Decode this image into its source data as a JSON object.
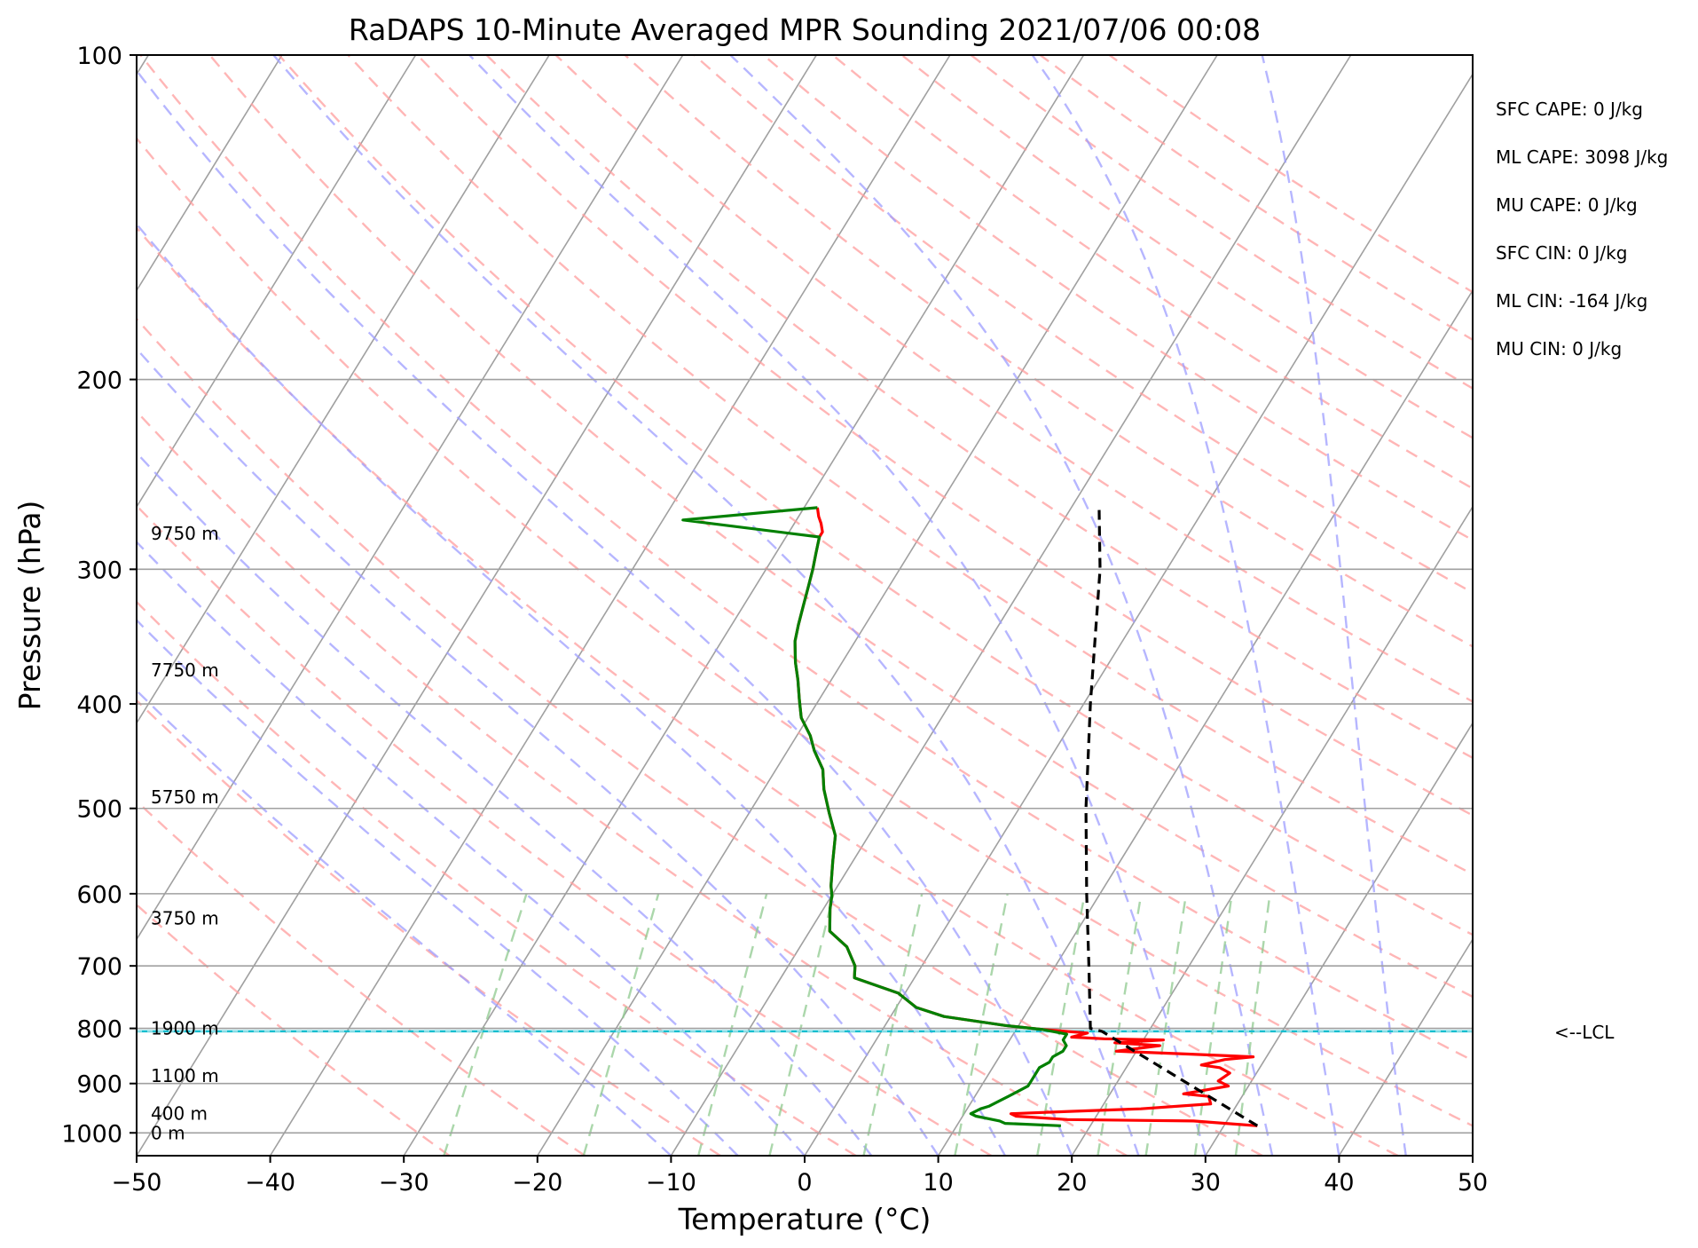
{
  "chart_data": {
    "type": "line",
    "subtype": "skew-T log-P diagram",
    "title": "RaDAPS 10-Minute Averaged MPR Sounding 2021/07/06 00:08",
    "xlabel": "Temperature (°C)",
    "ylabel": "Pressure (hPa)",
    "xlim": [
      -50,
      50
    ],
    "ylim": [
      1050,
      100
    ],
    "y_scale": "log",
    "x_ticks": [
      -50,
      -40,
      -30,
      -20,
      -10,
      0,
      10,
      20,
      30,
      40,
      50
    ],
    "x_tick_labels": [
      "−50",
      "−40",
      "−30",
      "−20",
      "−10",
      "0",
      "10",
      "20",
      "30",
      "40",
      "50"
    ],
    "y_ticks": [
      100,
      200,
      300,
      400,
      500,
      600,
      700,
      800,
      900,
      1000
    ],
    "y_tick_labels": [
      "100",
      "200",
      "300",
      "400",
      "500",
      "600",
      "700",
      "800",
      "900",
      "1000"
    ],
    "grid": true,
    "series": [
      {
        "role": "temperature",
        "color": "#ff0000",
        "points": [
          [
            32.5,
            985
          ],
          [
            27.5,
            975
          ],
          [
            18,
            972
          ],
          [
            14,
            965
          ],
          [
            13.5,
            960
          ],
          [
            18,
            955
          ],
          [
            23,
            950
          ],
          [
            28,
            940
          ],
          [
            27.5,
            925
          ],
          [
            25.5,
            920
          ],
          [
            28.5,
            905
          ],
          [
            27.5,
            895
          ],
          [
            28,
            880
          ],
          [
            27,
            870
          ],
          [
            25.5,
            865
          ],
          [
            27,
            855
          ],
          [
            29,
            850
          ],
          [
            24,
            845
          ],
          [
            18.5,
            840
          ],
          [
            21.5,
            830
          ],
          [
            18,
            825
          ],
          [
            21.5,
            820
          ],
          [
            17,
            818
          ],
          [
            14.5,
            815
          ],
          [
            15.5,
            808
          ],
          [
            12,
            802
          ],
          [
            9,
            795
          ],
          [
            4,
            780
          ],
          [
            1.5,
            765
          ],
          [
            -0.5,
            742
          ],
          [
            -4.5,
            718
          ],
          [
            -5,
            700
          ],
          [
            -6.5,
            672
          ],
          [
            -8.5,
            650
          ],
          [
            -9.5,
            620
          ],
          [
            -10,
            602
          ],
          [
            -10.5,
            590
          ],
          [
            -11.5,
            560
          ],
          [
            -12.5,
            530
          ],
          [
            -14,
            505
          ],
          [
            -15.5,
            480
          ],
          [
            -16.5,
            460
          ],
          [
            -18,
            442
          ],
          [
            -19,
            428
          ],
          [
            -20.5,
            412
          ],
          [
            -21.5,
            396
          ],
          [
            -22.5,
            380
          ],
          [
            -23.5,
            366
          ],
          [
            -24.5,
            350
          ],
          [
            -25,
            338
          ],
          [
            -25.5,
            325
          ],
          [
            -26,
            312
          ],
          [
            -26.5,
            300
          ],
          [
            -27,
            290
          ],
          [
            -27.5,
            280
          ],
          [
            -27.5,
            277
          ],
          [
            -28,
            272
          ],
          [
            -28.5,
            268
          ],
          [
            -29,
            263
          ]
        ]
      },
      {
        "role": "dewpoint",
        "color": "#008000",
        "points": [
          [
            17.8,
            985
          ],
          [
            13.5,
            980
          ],
          [
            13,
            975
          ],
          [
            12,
            970
          ],
          [
            11,
            965
          ],
          [
            10.5,
            960
          ],
          [
            11,
            950
          ],
          [
            11.5,
            945
          ],
          [
            12,
            935
          ],
          [
            12.5,
            925
          ],
          [
            13,
            915
          ],
          [
            13.5,
            905
          ],
          [
            13.5,
            895
          ],
          [
            13.5,
            880
          ],
          [
            13.5,
            870
          ],
          [
            14,
            860
          ],
          [
            14,
            850
          ],
          [
            14.5,
            840
          ],
          [
            14.5,
            830
          ],
          [
            14,
            820
          ],
          [
            14,
            810
          ],
          [
            12,
            802
          ],
          [
            9,
            795
          ],
          [
            4,
            780
          ],
          [
            1.5,
            765
          ],
          [
            -0.5,
            742
          ],
          [
            -4.5,
            718
          ],
          [
            -5,
            700
          ],
          [
            -6.5,
            672
          ],
          [
            -8.5,
            650
          ],
          [
            -9.5,
            620
          ],
          [
            -10,
            602
          ],
          [
            -10.5,
            590
          ],
          [
            -11.5,
            560
          ],
          [
            -12.5,
            530
          ],
          [
            -14,
            505
          ],
          [
            -15.5,
            480
          ],
          [
            -16.5,
            460
          ],
          [
            -18,
            442
          ],
          [
            -19,
            428
          ],
          [
            -20.5,
            412
          ],
          [
            -21.5,
            396
          ],
          [
            -22.5,
            380
          ],
          [
            -23.5,
            366
          ],
          [
            -24.5,
            350
          ],
          [
            -25,
            338
          ],
          [
            -25.5,
            325
          ],
          [
            -26,
            312
          ],
          [
            -26.5,
            300
          ],
          [
            -27,
            290
          ],
          [
            -27.5,
            280
          ],
          [
            -38.5,
            270
          ],
          [
            -29,
            263
          ]
        ]
      },
      {
        "role": "parcel profile",
        "color": "#000000",
        "points": [
          [
            32.5,
            985
          ],
          [
            16.5,
            805
          ],
          [
            15.5,
            800
          ],
          [
            12.5,
            700
          ],
          [
            9,
            600
          ],
          [
            5,
            500
          ],
          [
            0.5,
            400
          ],
          [
            -5,
            300
          ],
          [
            -8,
            262
          ]
        ]
      }
    ],
    "lcl_hpa": 805,
    "lcl_label": "<--LCL",
    "annotations": [
      "SFC CAPE: 0 J/kg",
      "ML CAPE: 3098 J/kg",
      "MU CAPE: 0 J/kg",
      "SFC CIN: 0 J/kg",
      "ML CIN: -164 J/kg",
      "MU CIN: 0 J/kg"
    ],
    "height_labels": [
      {
        "text": "9750 m",
        "p": 278
      },
      {
        "text": "7750 m",
        "p": 372
      },
      {
        "text": "5750 m",
        "p": 488
      },
      {
        "text": "3750 m",
        "p": 632
      },
      {
        "text": "1900 m",
        "p": 800
      },
      {
        "text": "1100 m",
        "p": 885
      },
      {
        "text": "400 m",
        "p": 960
      },
      {
        "text": "0 m",
        "p": 1000
      }
    ],
    "colors": {
      "grid": "#a0a0a0",
      "isotherm": "#808080",
      "dry_adiabat": "#ff9e9e",
      "moist_adiabat": "#9e9eff",
      "mixing_ratio": "#8fc98f",
      "lcl_line": "#17becf"
    }
  }
}
